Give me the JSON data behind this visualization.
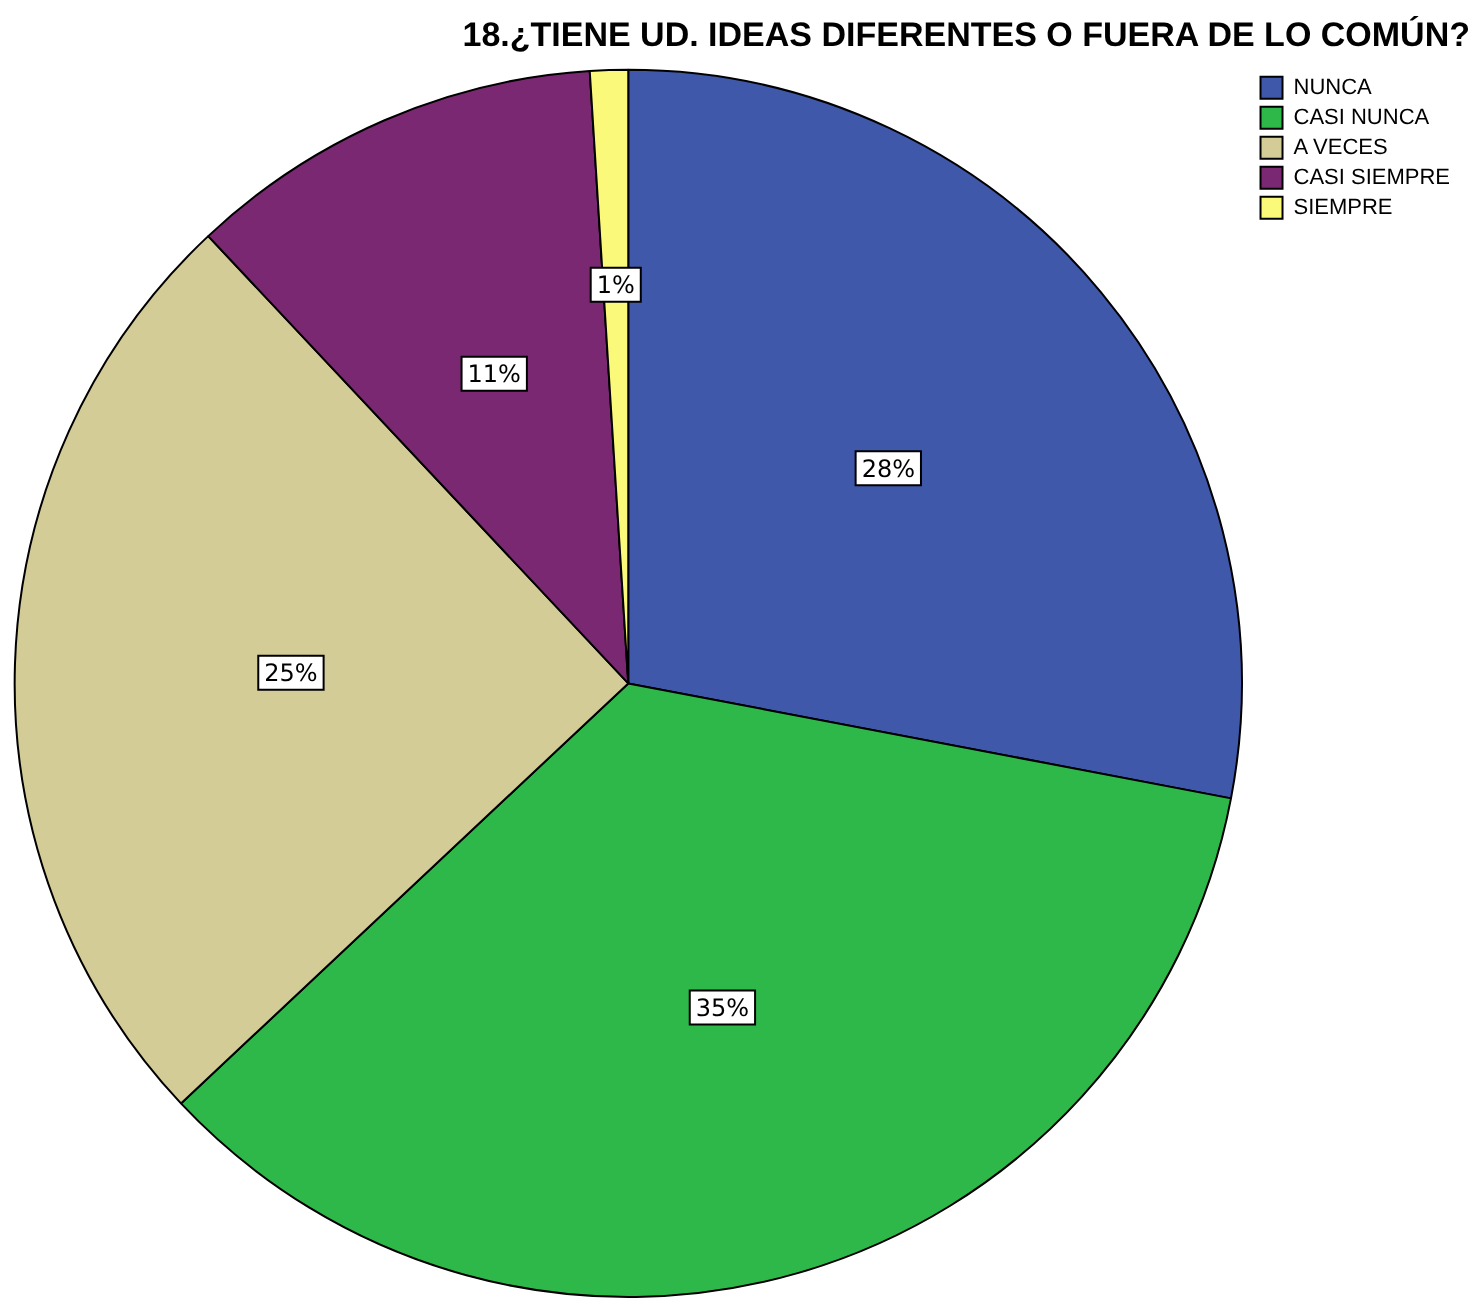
{
  "chart_data": {
    "type": "pie",
    "title": "18.¿TIENE UD. IDEAS DIFERENTES O FUERA DE LO COMÚN?",
    "categories": [
      "NUNCA",
      "CASI NUNCA",
      "A VECES",
      "CASI SIEMPRE",
      "SIEMPRE"
    ],
    "values": [
      28,
      35,
      25,
      11,
      1
    ],
    "colors": [
      "#3f58aa",
      "#2fb84a",
      "#d4cc96",
      "#7b2873",
      "#fbf97a"
    ],
    "value_labels": [
      "28%",
      "35%",
      "25%",
      "11%",
      "1%"
    ],
    "legend": "top right"
  }
}
